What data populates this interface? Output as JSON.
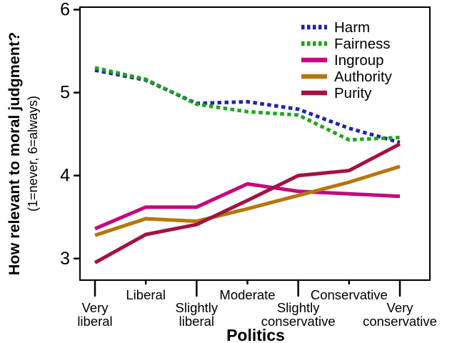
{
  "chart_data": {
    "type": "line",
    "title": "",
    "xlabel": "Politics",
    "ylabel": "How relevant to moral judgment?",
    "ylabel_note": "(1=never, 6=always)",
    "categories": [
      "Very liberal",
      "Liberal",
      "Slightly liberal",
      "Moderate",
      "Slightly conservative",
      "Conservative",
      "Very conservative"
    ],
    "yticks": [
      3,
      4,
      5,
      6
    ],
    "ylim": [
      2.74,
      6.03
    ],
    "grid": false,
    "legend_position": "top-right-inside",
    "frame_color": "#000000",
    "background_color": "#ffffff",
    "series": [
      {
        "name": "Harm",
        "color": "#2222A8",
        "style": "dashed",
        "values": [
          5.27,
          5.15,
          4.87,
          4.89,
          4.8,
          4.57,
          4.4
        ]
      },
      {
        "name": "Fairness",
        "color": "#1FA41F",
        "style": "dashed",
        "values": [
          5.3,
          5.16,
          4.86,
          4.77,
          4.73,
          4.43,
          4.46
        ]
      },
      {
        "name": "Ingroup",
        "color": "#C4087E",
        "style": "solid",
        "values": [
          3.36,
          3.62,
          3.62,
          3.9,
          3.81,
          3.78,
          3.75
        ]
      },
      {
        "name": "Authority",
        "color": "#B5770B",
        "style": "solid",
        "values": [
          3.28,
          3.48,
          3.45,
          3.6,
          3.76,
          3.92,
          4.11
        ]
      },
      {
        "name": "Purity",
        "color": "#A31243",
        "style": "solid",
        "values": [
          2.95,
          3.29,
          3.41,
          3.7,
          4.0,
          4.06,
          4.38
        ]
      }
    ]
  }
}
